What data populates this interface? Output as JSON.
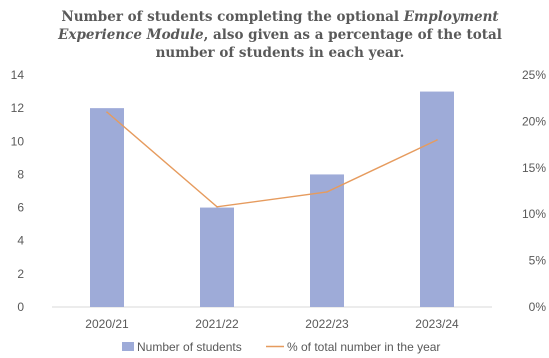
{
  "title": {
    "line1": "Number of students completing the optional ",
    "line1_em": "Employment",
    "line2_em": "Experience Module",
    "line2": ", also given as a percentage of the total",
    "line3": "number of students in each year."
  },
  "colors": {
    "bar": "#9eabd8",
    "line": "#e69b5e",
    "axis_text": "#595959",
    "grid": "#d9d9d9"
  },
  "chart_data": {
    "type": "bar",
    "categories": [
      "2020/21",
      "2021/22",
      "2022/23",
      "2023/24"
    ],
    "series": [
      {
        "name": "Number of students",
        "type": "bar",
        "axis": "left",
        "values": [
          12,
          6,
          8,
          13
        ]
      },
      {
        "name": "% of total number in the year",
        "type": "line",
        "axis": "right",
        "values": [
          21,
          10.8,
          12.4,
          18
        ]
      }
    ],
    "y_left": {
      "ticks": [
        "0",
        "2",
        "4",
        "6",
        "8",
        "10",
        "12",
        "14"
      ],
      "ylim": [
        0,
        14
      ]
    },
    "y_right": {
      "ticks": [
        "0%",
        "5%",
        "10%",
        "15%",
        "20%",
        "25%"
      ],
      "ylim": [
        0,
        25
      ]
    },
    "grid": false,
    "legend": "bottom"
  }
}
